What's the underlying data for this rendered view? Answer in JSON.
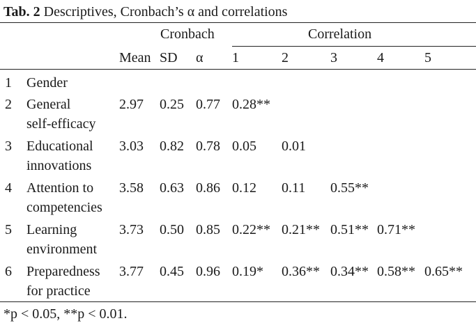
{
  "caption": {
    "label": "Tab. 2",
    "title": "Descriptives, Cronbach’s α and correlations"
  },
  "header": {
    "cronbach_group": "Cronbach",
    "correlation_group": "Correlation",
    "columns": [
      "Mean",
      "SD",
      "α",
      "1",
      "2",
      "3",
      "4",
      "5"
    ]
  },
  "rows": [
    {
      "num": "1",
      "variable_lines": [
        "Gender"
      ],
      "mean": "",
      "sd": "",
      "alpha": "",
      "correlations": [
        "",
        "",
        "",
        "",
        ""
      ]
    },
    {
      "num": "2",
      "variable_lines": [
        "General",
        "self-efficacy"
      ],
      "mean": "2.97",
      "sd": "0.25",
      "alpha": "0.77",
      "correlations": [
        "0.28**",
        "",
        "",
        "",
        ""
      ]
    },
    {
      "num": "3",
      "variable_lines": [
        "Educational",
        "innovations"
      ],
      "mean": "3.03",
      "sd": "0.82",
      "alpha": "0.78",
      "correlations": [
        "0.05",
        "0.01",
        "",
        "",
        ""
      ]
    },
    {
      "num": "4",
      "variable_lines": [
        "Attention to",
        "competencies"
      ],
      "mean": "3.58",
      "sd": "0.63",
      "alpha": "0.86",
      "correlations": [
        "0.12",
        "0.11",
        "0.55**",
        "",
        ""
      ]
    },
    {
      "num": "5",
      "variable_lines": [
        "Learning",
        "environment"
      ],
      "mean": "3.73",
      "sd": "0.50",
      "alpha": "0.85",
      "correlations": [
        "0.22**",
        "0.21**",
        "0.51**",
        "0.71**",
        ""
      ]
    },
    {
      "num": "6",
      "variable_lines": [
        "Preparedness",
        "for practice"
      ],
      "mean": "3.77",
      "sd": "0.45",
      "alpha": "0.96",
      "correlations": [
        "0.19*",
        "0.36**",
        "0.34**",
        "0.58**",
        "0.65**"
      ]
    }
  ],
  "footnote": "*p < 0.05, **p < 0.01."
}
